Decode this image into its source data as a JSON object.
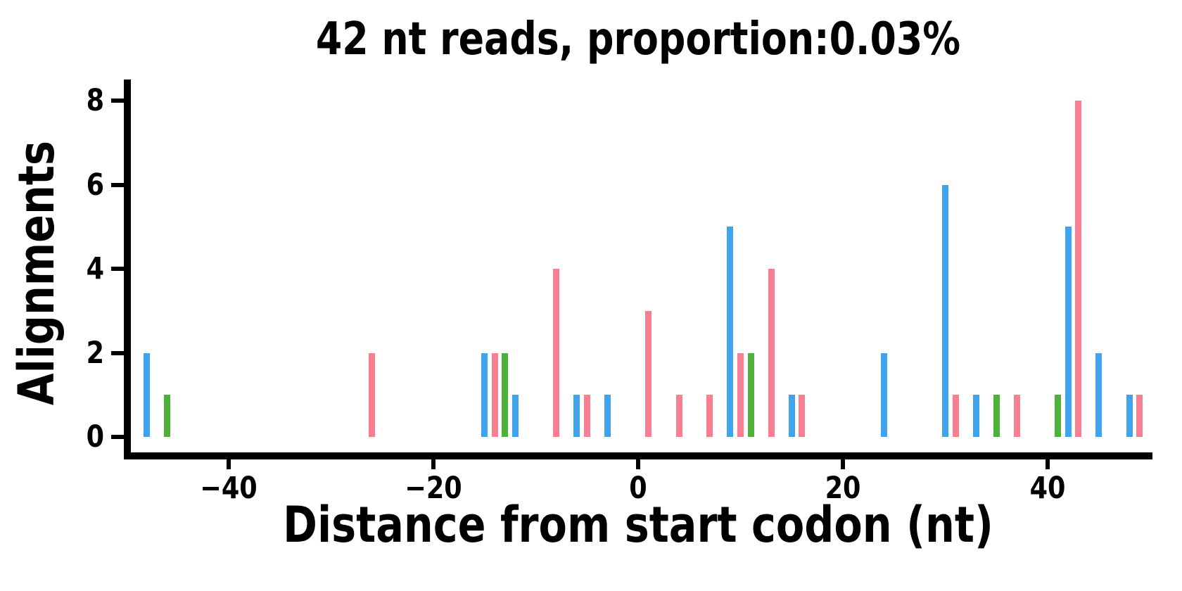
{
  "figure": {
    "title": "42 nt reads, proportion:0.03%",
    "xlabel": "Distance from start codon (nt)",
    "ylabel": "Alignments"
  },
  "chart_data": {
    "type": "bar",
    "title": "42 nt reads, proportion:0.03%",
    "xlabel": "Distance from start codon (nt)",
    "ylabel": "Alignments",
    "xlim": [
      -50,
      50
    ],
    "ylim": [
      0,
      8.5
    ],
    "xticks": [
      -40,
      -20,
      0,
      20,
      40
    ],
    "yticks": [
      0,
      2,
      4,
      6,
      8
    ],
    "grid": false,
    "legend_position": "none",
    "series_colors": {
      "blue": "#3FA3ED",
      "green": "#4CB23A",
      "pink": "#F87E92"
    },
    "bars": [
      {
        "x": -48,
        "alignments": 2,
        "series": "blue"
      },
      {
        "x": -46,
        "alignments": 1,
        "series": "green"
      },
      {
        "x": -26,
        "alignments": 2,
        "series": "pink"
      },
      {
        "x": -15,
        "alignments": 2,
        "series": "blue"
      },
      {
        "x": -14,
        "alignments": 2,
        "series": "pink"
      },
      {
        "x": -13,
        "alignments": 2,
        "series": "green"
      },
      {
        "x": -12,
        "alignments": 1,
        "series": "blue"
      },
      {
        "x": -8,
        "alignments": 4,
        "series": "pink"
      },
      {
        "x": -6,
        "alignments": 1,
        "series": "blue"
      },
      {
        "x": -5,
        "alignments": 1,
        "series": "pink"
      },
      {
        "x": -3,
        "alignments": 1,
        "series": "blue"
      },
      {
        "x": 1,
        "alignments": 3,
        "series": "pink"
      },
      {
        "x": 4,
        "alignments": 1,
        "series": "pink"
      },
      {
        "x": 7,
        "alignments": 1,
        "series": "pink"
      },
      {
        "x": 9,
        "alignments": 5,
        "series": "blue"
      },
      {
        "x": 10,
        "alignments": 2,
        "series": "pink"
      },
      {
        "x": 11,
        "alignments": 2,
        "series": "green"
      },
      {
        "x": 13,
        "alignments": 4,
        "series": "pink"
      },
      {
        "x": 15,
        "alignments": 1,
        "series": "blue"
      },
      {
        "x": 16,
        "alignments": 1,
        "series": "pink"
      },
      {
        "x": 24,
        "alignments": 2,
        "series": "blue"
      },
      {
        "x": 30,
        "alignments": 6,
        "series": "blue"
      },
      {
        "x": 31,
        "alignments": 1,
        "series": "pink"
      },
      {
        "x": 33,
        "alignments": 1,
        "series": "blue"
      },
      {
        "x": 35,
        "alignments": 1,
        "series": "green"
      },
      {
        "x": 37,
        "alignments": 1,
        "series": "pink"
      },
      {
        "x": 41,
        "alignments": 1,
        "series": "green"
      },
      {
        "x": 42,
        "alignments": 5,
        "series": "blue"
      },
      {
        "x": 43,
        "alignments": 8,
        "series": "pink"
      },
      {
        "x": 45,
        "alignments": 2,
        "series": "blue"
      },
      {
        "x": 48,
        "alignments": 1,
        "series": "blue"
      },
      {
        "x": 49,
        "alignments": 1,
        "series": "pink"
      }
    ]
  }
}
